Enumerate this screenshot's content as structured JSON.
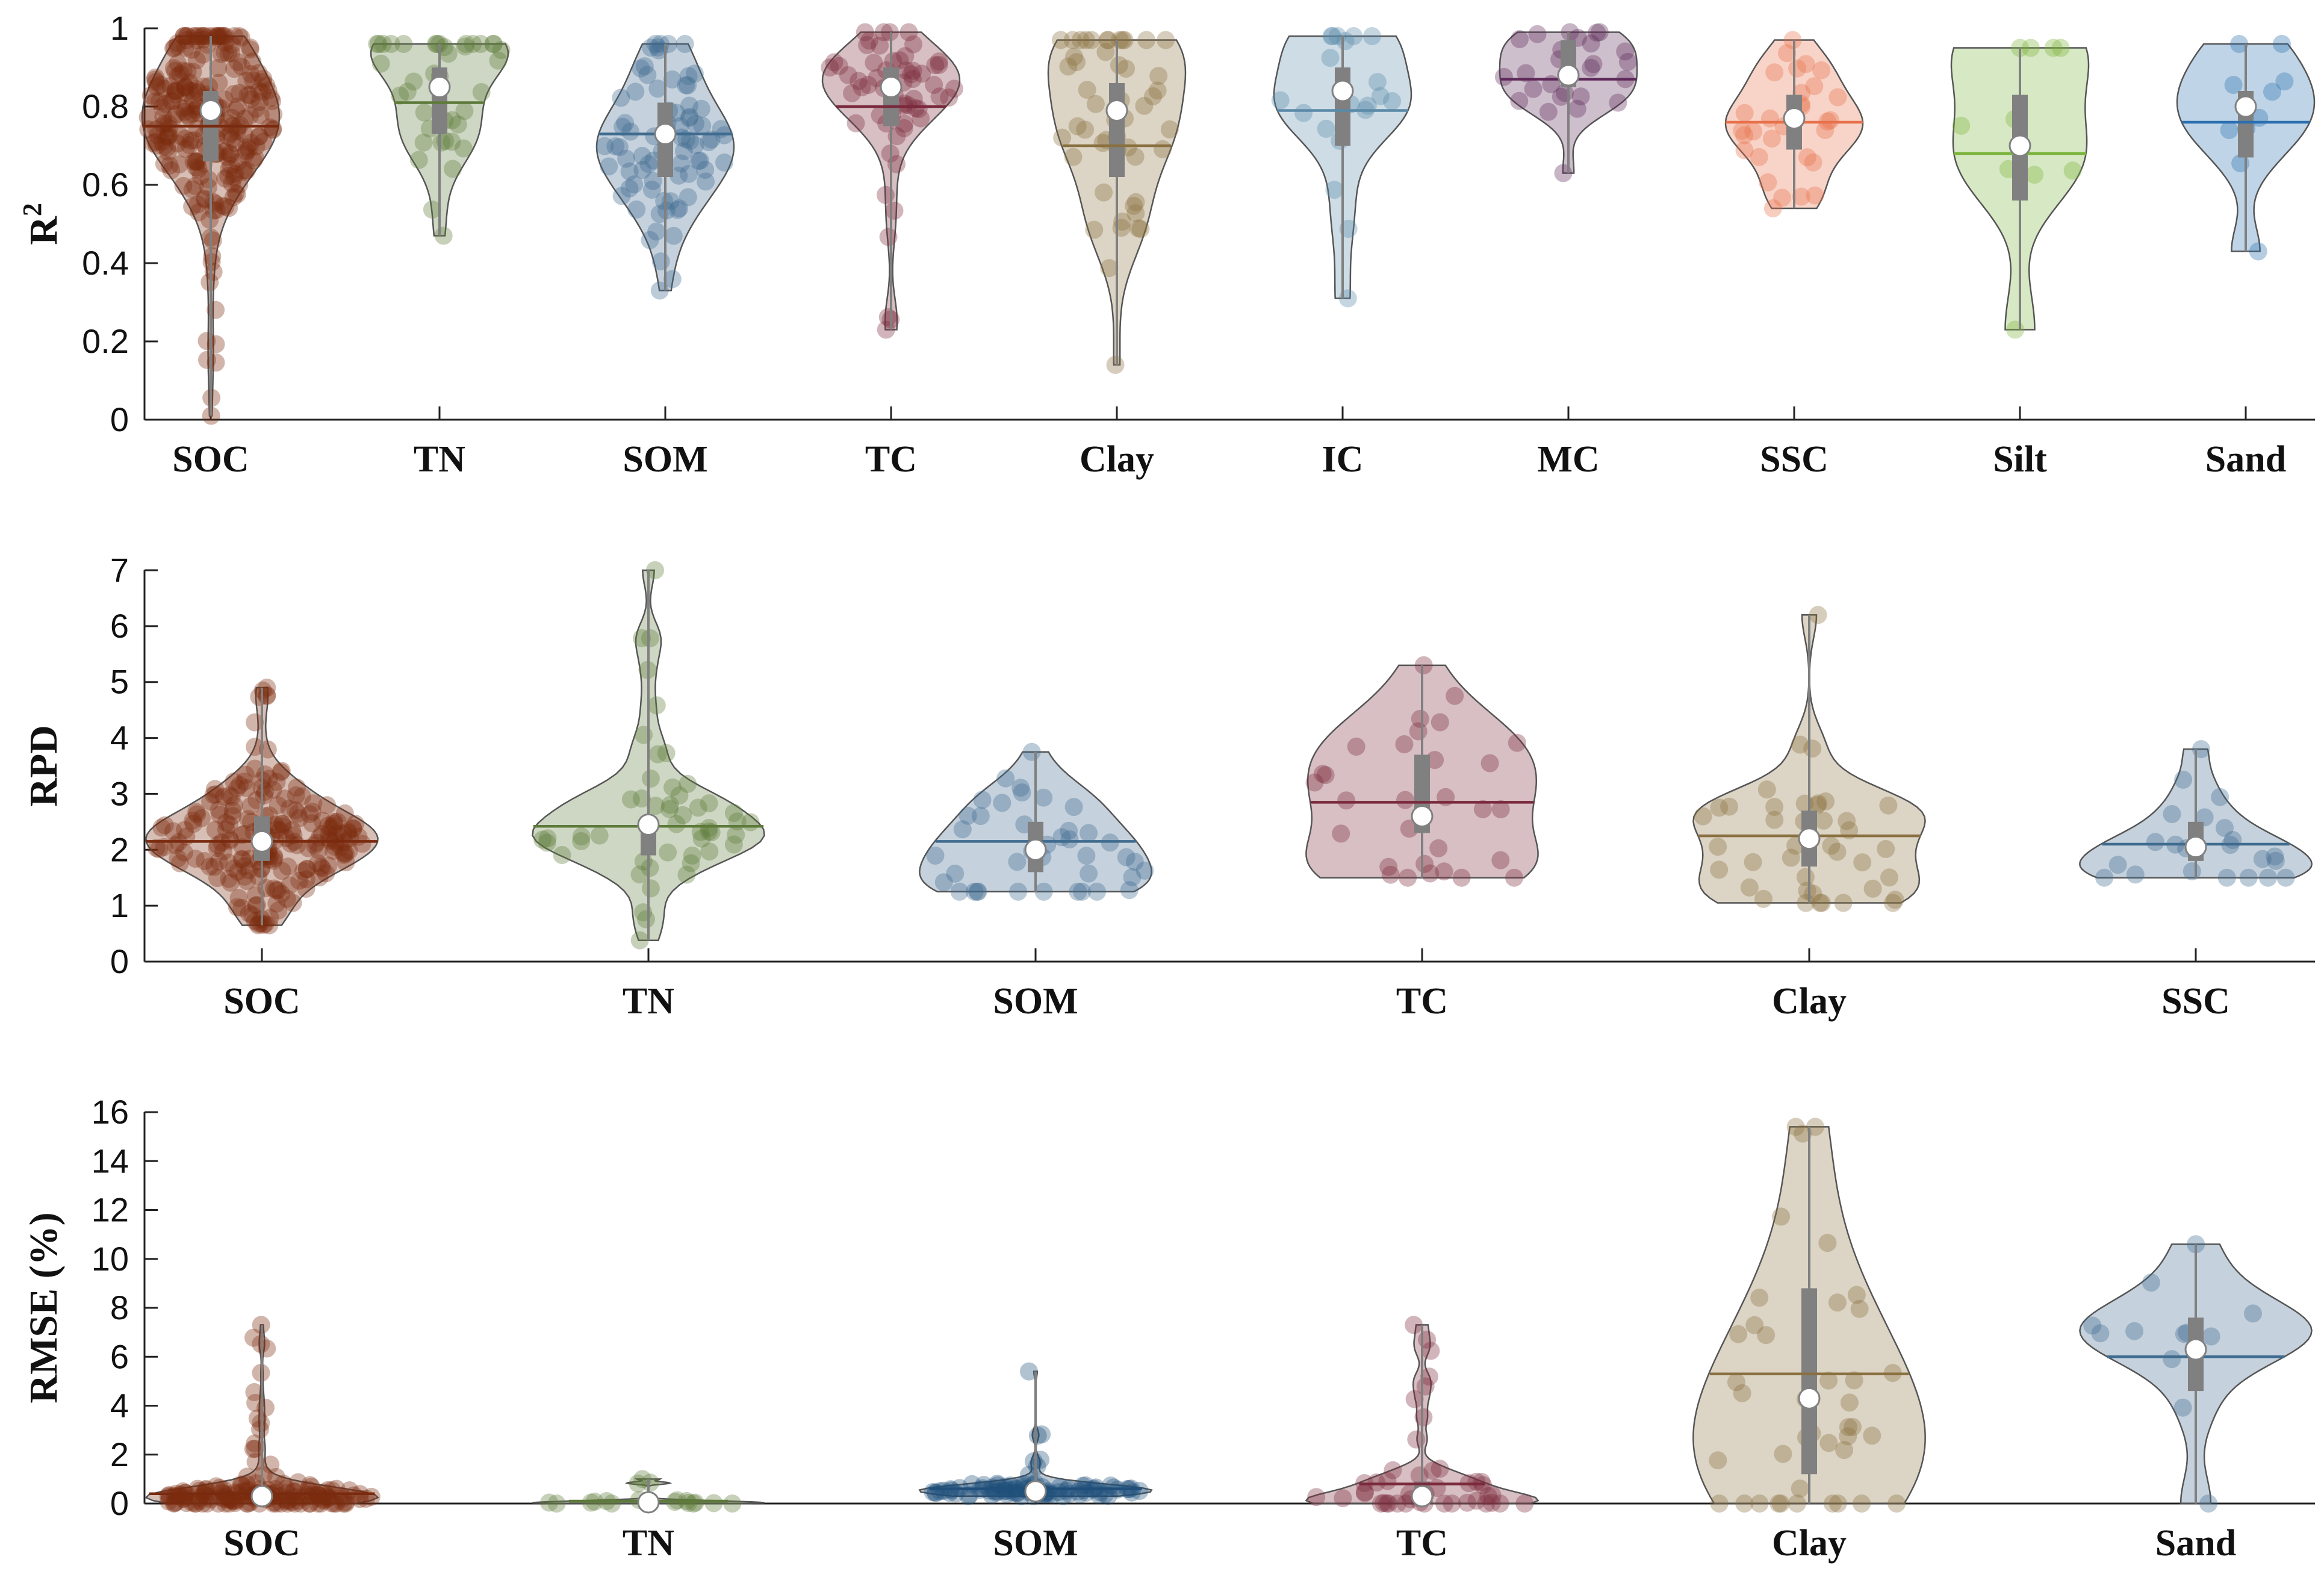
{
  "chart_data": [
    {
      "type": "violin",
      "ylabel": "R",
      "ylabel_superscript": "2",
      "ylim": [
        0,
        1
      ],
      "yticks": [
        0,
        0.2,
        0.4,
        0.6,
        0.8,
        1
      ],
      "ytick_labels": [
        "0",
        "0.2",
        "0.4",
        "0.6",
        "0.8",
        "1"
      ],
      "categories": [
        "SOC",
        "TN",
        "SOM",
        "TC",
        "Clay",
        "IC",
        "MC",
        "SSC",
        "Silt",
        "Sand"
      ],
      "series": [
        {
          "name": "SOC",
          "color": "#7a2a0e",
          "min": 0.01,
          "max": 0.98,
          "q1": 0.66,
          "q3": 0.84,
          "median": 0.79,
          "mean": 0.75,
          "n": 260
        },
        {
          "name": "TN",
          "color": "#5e7a3a",
          "min": 0.47,
          "max": 0.96,
          "q1": 0.73,
          "q3": 0.9,
          "median": 0.85,
          "mean": 0.81,
          "n": 40
        },
        {
          "name": "SOM",
          "color": "#3f6b8f",
          "min": 0.33,
          "max": 0.96,
          "q1": 0.62,
          "q3": 0.81,
          "median": 0.73,
          "mean": 0.73,
          "n": 80
        },
        {
          "name": "TC",
          "color": "#7a2a3c",
          "min": 0.23,
          "max": 0.99,
          "q1": 0.75,
          "q3": 0.9,
          "median": 0.85,
          "mean": 0.8,
          "n": 60
        },
        {
          "name": "Clay",
          "color": "#8a7040",
          "min": 0.14,
          "max": 0.97,
          "q1": 0.62,
          "q3": 0.86,
          "median": 0.79,
          "mean": 0.7,
          "n": 50
        },
        {
          "name": "IC",
          "color": "#5a8aa8",
          "min": 0.31,
          "max": 0.98,
          "q1": 0.7,
          "q3": 0.9,
          "median": 0.84,
          "mean": 0.79,
          "n": 20
        },
        {
          "name": "MC",
          "color": "#5e2a5a",
          "min": 0.63,
          "max": 0.99,
          "q1": 0.85,
          "q3": 0.97,
          "median": 0.88,
          "mean": 0.87,
          "n": 26
        },
        {
          "name": "SSC",
          "color": "#e8704a",
          "min": 0.54,
          "max": 0.97,
          "q1": 0.69,
          "q3": 0.83,
          "median": 0.77,
          "mean": 0.76,
          "n": 30
        },
        {
          "name": "Silt",
          "color": "#7ab33a",
          "min": 0.23,
          "max": 0.95,
          "q1": 0.56,
          "q3": 0.83,
          "median": 0.7,
          "mean": 0.68,
          "n": 10
        },
        {
          "name": "Sand",
          "color": "#2a6fb0",
          "min": 0.43,
          "max": 0.96,
          "q1": 0.67,
          "q3": 0.84,
          "median": 0.8,
          "mean": 0.76,
          "n": 10
        }
      ]
    },
    {
      "type": "violin",
      "ylabel": "RPD",
      "ylim": [
        0,
        7
      ],
      "yticks": [
        0,
        1,
        2,
        3,
        4,
        5,
        6,
        7
      ],
      "ytick_labels": [
        "0",
        "1",
        "2",
        "3",
        "4",
        "5",
        "6",
        "7"
      ],
      "categories": [
        "SOC",
        "TN",
        "SOM",
        "TC",
        "Clay",
        "SSC"
      ],
      "series": [
        {
          "name": "SOC",
          "color": "#7a2a0e",
          "min": 0.65,
          "max": 4.9,
          "q1": 1.8,
          "q3": 2.6,
          "median": 2.15,
          "mean": 2.15,
          "n": 220
        },
        {
          "name": "TN",
          "color": "#5e7a3a",
          "min": 0.38,
          "max": 7.0,
          "q1": 1.9,
          "q3": 2.6,
          "median": 2.45,
          "mean": 2.42,
          "n": 50
        },
        {
          "name": "SOM",
          "color": "#3f6b8f",
          "min": 1.25,
          "max": 3.75,
          "q1": 1.6,
          "q3": 2.5,
          "median": 2.0,
          "mean": 2.15,
          "n": 40
        },
        {
          "name": "TC",
          "color": "#7a2a3c",
          "min": 1.5,
          "max": 5.3,
          "q1": 2.3,
          "q3": 3.7,
          "median": 2.6,
          "mean": 2.85,
          "n": 30
        },
        {
          "name": "Clay",
          "color": "#8a7040",
          "min": 1.05,
          "max": 6.2,
          "q1": 1.7,
          "q3": 2.7,
          "median": 2.2,
          "mean": 2.25,
          "n": 40
        },
        {
          "name": "SSC",
          "color": "#3f6b8f",
          "min": 1.5,
          "max": 3.8,
          "q1": 1.8,
          "q3": 2.5,
          "median": 2.05,
          "mean": 2.1,
          "n": 22
        }
      ]
    },
    {
      "type": "violin",
      "ylabel": "RMSE (%)",
      "ylim": [
        0,
        16
      ],
      "yticks": [
        0,
        2,
        4,
        6,
        8,
        10,
        12,
        14,
        16
      ],
      "ytick_labels": [
        "0",
        "2",
        "4",
        "6",
        "8",
        "10",
        "12",
        "14",
        "16"
      ],
      "categories": [
        "SOC",
        "TN",
        "SOM",
        "TC",
        "Clay",
        "Sand"
      ],
      "series": [
        {
          "name": "SOC",
          "color": "#7a2a0e",
          "min": 0.0,
          "max": 7.3,
          "q1": 0.1,
          "q3": 0.5,
          "median": 0.3,
          "mean": 0.4,
          "n": 160
        },
        {
          "name": "TN",
          "color": "#5e7a3a",
          "min": 0.0,
          "max": 1.0,
          "q1": 0.02,
          "q3": 0.12,
          "median": 0.05,
          "mean": 0.1,
          "n": 18
        },
        {
          "name": "SOM",
          "color": "#1f4f7a",
          "min": 0.3,
          "max": 5.4,
          "q1": 0.4,
          "q3": 0.6,
          "median": 0.5,
          "mean": 0.6,
          "n": 90
        },
        {
          "name": "TC",
          "color": "#7a2a3c",
          "min": 0.0,
          "max": 7.3,
          "q1": 0.1,
          "q3": 0.9,
          "median": 0.3,
          "mean": 0.8,
          "n": 45
        },
        {
          "name": "Clay",
          "color": "#8a7040",
          "min": 0.0,
          "max": 15.4,
          "q1": 1.2,
          "q3": 8.8,
          "median": 4.3,
          "mean": 5.3,
          "n": 40
        },
        {
          "name": "Sand",
          "color": "#3f6b8f",
          "min": 0.0,
          "max": 10.6,
          "q1": 4.6,
          "q3": 7.6,
          "median": 6.3,
          "mean": 6.0,
          "n": 12
        }
      ]
    }
  ]
}
